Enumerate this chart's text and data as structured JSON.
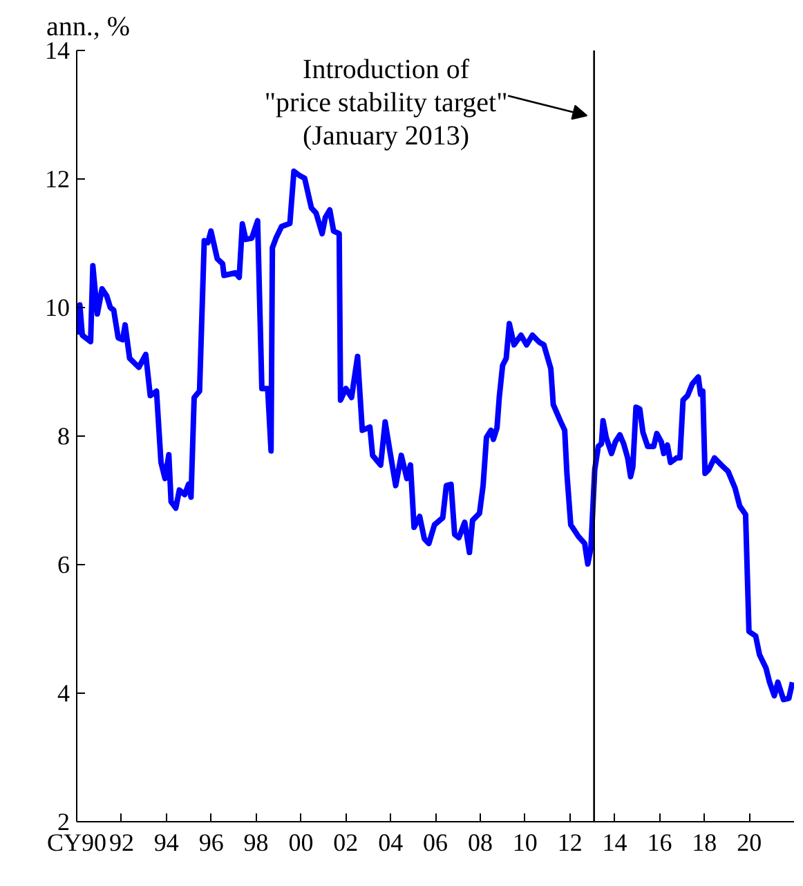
{
  "chart_data": {
    "type": "line",
    "ylabel": "ann., %",
    "x": [
      1990.0,
      1990.14,
      1990.25,
      1990.62,
      1990.72,
      1990.92,
      1991.13,
      1991.34,
      1991.5,
      1991.65,
      1991.85,
      1992.05,
      1992.16,
      1992.36,
      1992.77,
      1993.08,
      1993.28,
      1993.56,
      1993.76,
      1993.94,
      1994.11,
      1994.21,
      1994.42,
      1994.58,
      1994.82,
      1994.99,
      1995.1,
      1995.24,
      1995.48,
      1995.69,
      1995.85,
      1995.99,
      1996.27,
      1996.51,
      1996.57,
      1997.09,
      1997.25,
      1997.39,
      1997.54,
      1997.81,
      1998.07,
      1998.26,
      1998.52,
      1998.67,
      1998.73,
      1998.89,
      1999.14,
      1999.51,
      1999.69,
      1999.96,
      2000.17,
      2000.47,
      2000.68,
      2000.95,
      2001.09,
      2001.29,
      2001.46,
      2001.71,
      2001.77,
      2002.01,
      2002.26,
      2002.53,
      2002.74,
      2003.08,
      2003.2,
      2003.56,
      2003.76,
      2003.97,
      2004.23,
      2004.48,
      2004.73,
      2004.89,
      2005.05,
      2005.3,
      2005.51,
      2005.71,
      2005.96,
      2006.33,
      2006.49,
      2006.7,
      2006.86,
      2007.05,
      2007.31,
      2007.52,
      2007.66,
      2007.97,
      2008.13,
      2008.28,
      2008.48,
      2008.59,
      2008.75,
      2008.85,
      2009.0,
      2009.16,
      2009.3,
      2009.51,
      2009.82,
      2010.07,
      2010.33,
      2010.64,
      2010.84,
      2011.15,
      2011.26,
      2011.57,
      2011.77,
      2011.87,
      2012.04,
      2012.38,
      2012.66,
      2012.8,
      2012.94,
      2013.11,
      2013.27,
      2013.41,
      2013.48,
      2013.62,
      2013.86,
      2014.03,
      2014.23,
      2014.4,
      2014.58,
      2014.71,
      2014.81,
      2014.95,
      2015.12,
      2015.26,
      2015.47,
      2015.74,
      2015.88,
      2016.08,
      2016.19,
      2016.35,
      2016.49,
      2016.76,
      2016.91,
      2017.05,
      2017.25,
      2017.46,
      2017.73,
      2017.83,
      2017.93,
      2018.03,
      2018.2,
      2018.45,
      2018.76,
      2019.06,
      2019.37,
      2019.58,
      2019.84,
      2019.99,
      2020.29,
      2020.46,
      2020.75,
      2020.91,
      2021.12,
      2021.28,
      2021.53,
      2021.77,
      2021.93
    ],
    "series": [
      {
        "color": "#0000ff",
        "values": [
          9.58,
          10.04,
          9.57,
          9.47,
          10.65,
          9.9,
          10.29,
          10.18,
          10.0,
          9.96,
          9.53,
          9.5,
          9.73,
          9.21,
          9.07,
          9.27,
          8.63,
          8.7,
          7.59,
          7.34,
          7.71,
          6.98,
          6.88,
          7.16,
          7.09,
          7.25,
          7.05,
          8.6,
          8.7,
          11.04,
          11.01,
          11.19,
          10.76,
          10.68,
          10.5,
          10.54,
          10.47,
          11.3,
          11.06,
          11.08,
          11.35,
          8.74,
          8.74,
          7.77,
          10.93,
          11.08,
          11.26,
          11.31,
          12.12,
          12.05,
          12.01,
          11.55,
          11.47,
          11.15,
          11.4,
          11.52,
          11.19,
          11.15,
          8.56,
          8.74,
          8.6,
          9.24,
          8.09,
          8.14,
          7.7,
          7.55,
          8.22,
          7.77,
          7.23,
          7.7,
          7.34,
          7.55,
          6.58,
          6.75,
          6.4,
          6.33,
          6.62,
          6.73,
          7.23,
          7.25,
          6.47,
          6.42,
          6.66,
          6.19,
          6.69,
          6.8,
          7.23,
          7.98,
          8.09,
          7.95,
          8.13,
          8.6,
          9.1,
          9.21,
          9.75,
          9.42,
          9.57,
          9.42,
          9.57,
          9.46,
          9.42,
          9.05,
          8.49,
          8.24,
          8.09,
          7.41,
          6.62,
          6.44,
          6.33,
          6.01,
          6.26,
          7.48,
          7.84,
          7.88,
          8.24,
          7.98,
          7.73,
          7.91,
          8.02,
          7.88,
          7.66,
          7.37,
          7.52,
          8.45,
          8.42,
          8.06,
          7.84,
          7.84,
          8.04,
          7.91,
          7.73,
          7.86,
          7.59,
          7.66,
          7.66,
          8.56,
          8.63,
          8.81,
          8.92,
          8.65,
          8.7,
          7.42,
          7.48,
          7.66,
          7.55,
          7.45,
          7.19,
          6.91,
          6.78,
          4.96,
          4.89,
          4.6,
          4.39,
          4.17,
          3.96,
          4.17,
          3.9,
          3.92,
          4.17
        ]
      }
    ],
    "xlim": [
      1990,
      2022
    ],
    "xticks": [
      {
        "value": 1990,
        "label": "CY90"
      },
      {
        "value": 1992,
        "label": "92"
      },
      {
        "value": 1994,
        "label": "94"
      },
      {
        "value": 1996,
        "label": "96"
      },
      {
        "value": 1998,
        "label": "98"
      },
      {
        "value": 2000,
        "label": "00"
      },
      {
        "value": 2002,
        "label": "02"
      },
      {
        "value": 2004,
        "label": "04"
      },
      {
        "value": 2006,
        "label": "06"
      },
      {
        "value": 2008,
        "label": "08"
      },
      {
        "value": 2010,
        "label": "10"
      },
      {
        "value": 2012,
        "label": "12"
      },
      {
        "value": 2014,
        "label": "14"
      },
      {
        "value": 2016,
        "label": "16"
      },
      {
        "value": 2018,
        "label": "18"
      },
      {
        "value": 2020,
        "label": "20"
      }
    ],
    "ylim": [
      2,
      14
    ],
    "yticks": [
      2,
      4,
      6,
      8,
      10,
      12,
      14
    ],
    "ref_lines": [
      {
        "axis": "x",
        "value": 2013.08,
        "label": "Introduction of\n\"price stability target\"\n(January 2013)",
        "color": "#000000"
      }
    ],
    "grid": false,
    "marker": "none",
    "line_style": "solid"
  }
}
